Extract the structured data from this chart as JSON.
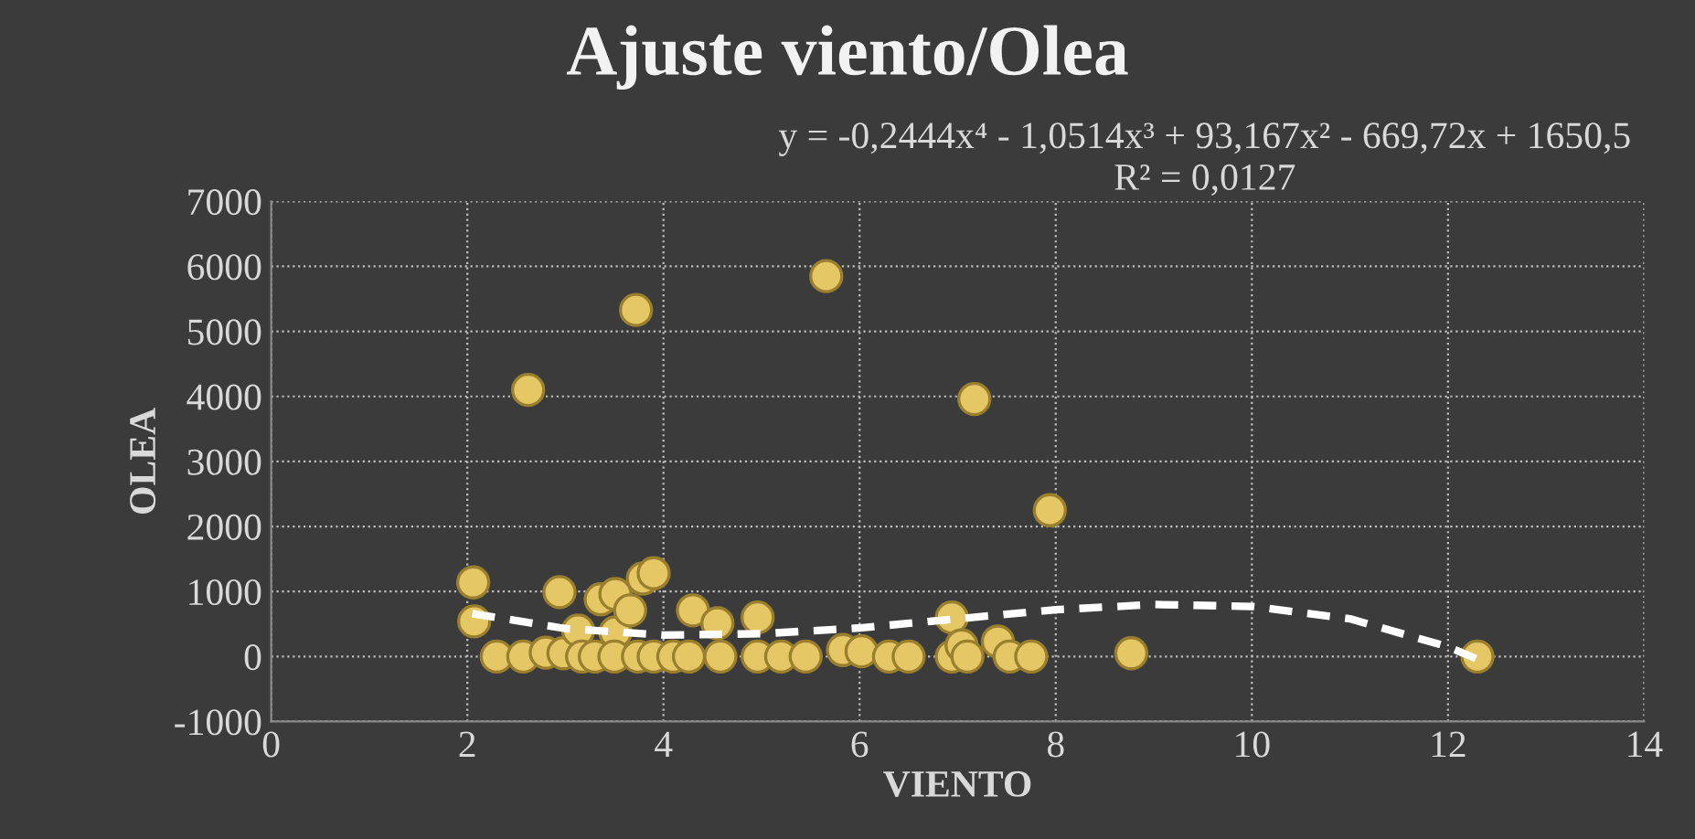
{
  "chart_data": {
    "type": "scatter",
    "title": "Ajuste viento/Olea",
    "xlabel": "VIENTO",
    "ylabel": "OLEA",
    "xlim": [
      0,
      14
    ],
    "xticks": [
      0,
      2,
      4,
      6,
      8,
      10,
      12,
      14
    ],
    "ylim": [
      -1000,
      7000
    ],
    "yticks": [
      -1000,
      0,
      1000,
      2000,
      3000,
      4000,
      5000,
      6000,
      7000
    ],
    "grid": true,
    "legend": false,
    "marker": "circle",
    "annotations": [
      "y = -0,2444x⁴ - 1,0514x³ + 93,167x² - 669,72x + 1650,5",
      "R² = 0,0127"
    ],
    "series": [
      {
        "color": "#e6c765",
        "x": [
          2.06,
          2.07,
          2.62,
          3.72,
          5.66,
          7.17,
          7.94,
          2.3,
          2.57,
          2.8,
          2.94,
          2.98,
          3.13,
          3.17,
          3.36,
          3.51,
          3.51,
          3.66,
          3.79,
          3.9,
          3.3,
          3.5,
          3.74,
          3.9,
          4.1,
          4.26,
          4.3,
          4.55,
          4.58,
          4.96,
          4.96,
          5.2,
          5.45,
          5.83,
          6.02,
          6.3,
          6.5,
          6.94,
          6.94,
          7.04,
          7.1,
          7.41,
          7.53,
          7.75,
          8.77,
          12.3
        ],
        "values": [
          1140,
          540,
          4100,
          5330,
          5850,
          3960,
          2250,
          0,
          0,
          60,
          990,
          50,
          400,
          0,
          880,
          960,
          370,
          710,
          1200,
          1280,
          0,
          0,
          0,
          0,
          0,
          0,
          710,
          510,
          0,
          600,
          0,
          0,
          0,
          100,
          80,
          0,
          0,
          600,
          0,
          170,
          0,
          230,
          0,
          0,
          50,
          0
        ]
      },
      {
        "type": "line",
        "color": "#ffffff",
        "line_style": "dashed",
        "marker": "none",
        "x": [
          2.05,
          3,
          4,
          5,
          6,
          7,
          8,
          9,
          10,
          11,
          12,
          12.3
        ],
        "values": [
          660,
          430,
          330,
          350,
          440,
          580,
          720,
          800,
          770,
          580,
          150,
          -40
        ]
      }
    ]
  }
}
